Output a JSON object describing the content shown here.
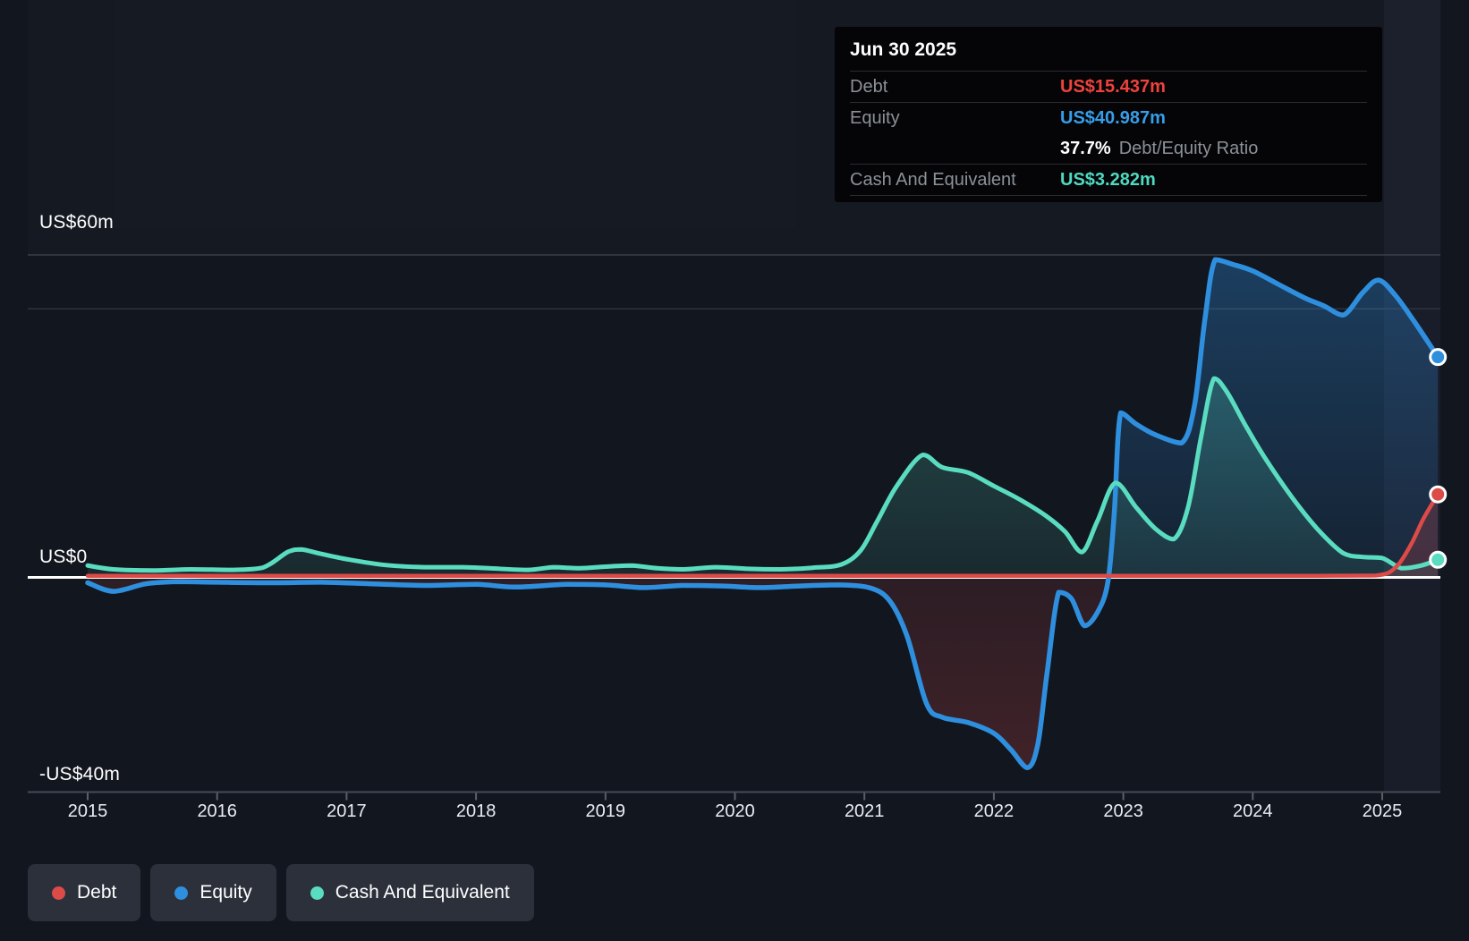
{
  "tooltip": {
    "date": "Jun 30 2025",
    "debt_label": "Debt",
    "debt_value": "US$15.437m",
    "equity_label": "Equity",
    "equity_value": "US$40.987m",
    "ratio_value": "37.7%",
    "ratio_label": "Debt/Equity Ratio",
    "cash_label": "Cash And Equivalent",
    "cash_value": "US$3.282m"
  },
  "y_axis": {
    "top_label": "US$60m",
    "zero_label": "US$0",
    "bottom_label": "-US$40m"
  },
  "x_axis": {
    "years": [
      "2015",
      "2016",
      "2017",
      "2018",
      "2019",
      "2020",
      "2021",
      "2022",
      "2023",
      "2024",
      "2025"
    ]
  },
  "legend": {
    "items": [
      {
        "label": "Debt",
        "color": "#dc4b48"
      },
      {
        "label": "Equity",
        "color": "#2f8fdf"
      },
      {
        "label": "Cash And Equivalent",
        "color": "#5adcc0"
      }
    ]
  },
  "colors": {
    "background": "#12161f",
    "debt_line": "#dc4b48",
    "equity_line": "#2f8fdf",
    "cash_line": "#5adcc0",
    "tooltip_debt_value": "#ee423d",
    "tooltip_equity_value": "#369ee8",
    "tooltip_cash_value": "#4fd9c0",
    "zero_line": "#ffffff",
    "gridline_major": "#3a3f4a",
    "gridline_minor": "#2e323c",
    "axis_line": "#454b57",
    "label_gray": "#8b9198"
  },
  "chart_data": {
    "type": "area",
    "x_unit": "year",
    "x_range": [
      2014.55,
      2025.45
    ],
    "ylim": [
      -40,
      62
    ],
    "ylabel_format": "US$ millions",
    "grid": "horizontal",
    "legend_position": "bottom",
    "y_ticks": [
      {
        "value": 60,
        "label": "US$60m"
      },
      {
        "value": 50,
        "label": ""
      },
      {
        "value": 0,
        "label": "US$0"
      },
      {
        "value": -40,
        "label": "-US$40m"
      }
    ],
    "x_ticks": [
      2015,
      2016,
      2017,
      2018,
      2019,
      2020,
      2021,
      2022,
      2023,
      2024,
      2025
    ],
    "hover_point": {
      "date": "Jun 30 2025",
      "x": 2025.5,
      "debt": 15.437,
      "equity": 40.987,
      "cash": 3.282,
      "debt_equity_ratio_pct": 37.7
    },
    "series": [
      {
        "name": "Debt",
        "color": "#dc4b48",
        "points": [
          [
            2015.0,
            0.3
          ],
          [
            2015.5,
            0.3
          ],
          [
            2016.0,
            0.3
          ],
          [
            2016.5,
            0.3
          ],
          [
            2017.0,
            0.3
          ],
          [
            2017.5,
            0.3
          ],
          [
            2018.0,
            0.3
          ],
          [
            2018.5,
            0.3
          ],
          [
            2019.0,
            0.3
          ],
          [
            2019.5,
            0.3
          ],
          [
            2020.0,
            0.3
          ],
          [
            2020.5,
            0.3
          ],
          [
            2021.0,
            0.3
          ],
          [
            2021.5,
            0.3
          ],
          [
            2022.0,
            0.3
          ],
          [
            2022.5,
            0.3
          ],
          [
            2023.0,
            0.3
          ],
          [
            2023.5,
            0.3
          ],
          [
            2024.0,
            0.3
          ],
          [
            2024.5,
            0.3
          ],
          [
            2024.95,
            0.35
          ],
          [
            2025.1,
            1.8
          ],
          [
            2025.22,
            6.0
          ],
          [
            2025.32,
            11.0
          ],
          [
            2025.43,
            15.437
          ]
        ]
      },
      {
        "name": "Equity",
        "color": "#2f8fdf",
        "points": [
          [
            2015.0,
            -1.0
          ],
          [
            2015.2,
            -2.6
          ],
          [
            2015.45,
            -1.2
          ],
          [
            2015.7,
            -0.8
          ],
          [
            2016.0,
            -0.9
          ],
          [
            2016.4,
            -1.0
          ],
          [
            2016.8,
            -0.9
          ],
          [
            2017.2,
            -1.2
          ],
          [
            2017.6,
            -1.5
          ],
          [
            2018.0,
            -1.3
          ],
          [
            2018.3,
            -1.8
          ],
          [
            2018.7,
            -1.3
          ],
          [
            2019.0,
            -1.4
          ],
          [
            2019.3,
            -1.9
          ],
          [
            2019.6,
            -1.5
          ],
          [
            2019.9,
            -1.6
          ],
          [
            2020.2,
            -1.9
          ],
          [
            2020.5,
            -1.6
          ],
          [
            2020.8,
            -1.4
          ],
          [
            2021.05,
            -2.0
          ],
          [
            2021.2,
            -4.5
          ],
          [
            2021.33,
            -11.0
          ],
          [
            2021.48,
            -23.5
          ],
          [
            2021.6,
            -26.0
          ],
          [
            2021.8,
            -27.0
          ],
          [
            2022.0,
            -29.0
          ],
          [
            2022.13,
            -32.0
          ],
          [
            2022.26,
            -35.4
          ],
          [
            2022.34,
            -31.0
          ],
          [
            2022.41,
            -18.0
          ],
          [
            2022.5,
            -2.8
          ],
          [
            2022.6,
            -4.0
          ],
          [
            2022.7,
            -9.0
          ],
          [
            2022.8,
            -6.5
          ],
          [
            2022.88,
            -1.0
          ],
          [
            2022.93,
            12.0
          ],
          [
            2022.98,
            30.6
          ],
          [
            2023.1,
            28.5
          ],
          [
            2023.25,
            26.5
          ],
          [
            2023.45,
            25.0
          ],
          [
            2023.55,
            32.0
          ],
          [
            2023.63,
            48.0
          ],
          [
            2023.71,
            59.1
          ],
          [
            2023.85,
            58.2
          ],
          [
            2024.0,
            57.0
          ],
          [
            2024.2,
            54.5
          ],
          [
            2024.4,
            52.0
          ],
          [
            2024.55,
            50.5
          ],
          [
            2024.7,
            48.8
          ],
          [
            2024.85,
            53.0
          ],
          [
            2024.97,
            55.3
          ],
          [
            2025.1,
            52.5
          ],
          [
            2025.25,
            47.5
          ],
          [
            2025.43,
            40.987
          ]
        ]
      },
      {
        "name": "Cash And Equivalent",
        "color": "#5adcc0",
        "points": [
          [
            2015.0,
            2.2
          ],
          [
            2015.2,
            1.5
          ],
          [
            2015.5,
            1.3
          ],
          [
            2015.8,
            1.5
          ],
          [
            2016.1,
            1.4
          ],
          [
            2016.35,
            1.8
          ],
          [
            2016.55,
            4.8
          ],
          [
            2016.65,
            5.2
          ],
          [
            2016.8,
            4.4
          ],
          [
            2017.0,
            3.4
          ],
          [
            2017.3,
            2.3
          ],
          [
            2017.6,
            1.9
          ],
          [
            2017.9,
            1.9
          ],
          [
            2018.1,
            1.7
          ],
          [
            2018.4,
            1.4
          ],
          [
            2018.6,
            1.9
          ],
          [
            2018.8,
            1.7
          ],
          [
            2019.0,
            2.0
          ],
          [
            2019.2,
            2.2
          ],
          [
            2019.4,
            1.7
          ],
          [
            2019.6,
            1.5
          ],
          [
            2019.85,
            1.9
          ],
          [
            2020.1,
            1.6
          ],
          [
            2020.35,
            1.5
          ],
          [
            2020.6,
            1.8
          ],
          [
            2020.82,
            2.4
          ],
          [
            2020.97,
            5.0
          ],
          [
            2021.1,
            10.5
          ],
          [
            2021.25,
            17.0
          ],
          [
            2021.45,
            22.8
          ],
          [
            2021.6,
            20.5
          ],
          [
            2021.8,
            19.5
          ],
          [
            2022.0,
            17.0
          ],
          [
            2022.2,
            14.5
          ],
          [
            2022.4,
            11.5
          ],
          [
            2022.55,
            8.5
          ],
          [
            2022.68,
            4.7
          ],
          [
            2022.8,
            10.5
          ],
          [
            2022.94,
            17.6
          ],
          [
            2023.1,
            13.0
          ],
          [
            2023.25,
            9.0
          ],
          [
            2023.39,
            7.1
          ],
          [
            2023.5,
            13.0
          ],
          [
            2023.6,
            26.0
          ],
          [
            2023.7,
            37.0
          ],
          [
            2023.8,
            34.5
          ],
          [
            2023.95,
            28.0
          ],
          [
            2024.1,
            22.0
          ],
          [
            2024.3,
            15.0
          ],
          [
            2024.5,
            9.0
          ],
          [
            2024.7,
            4.5
          ],
          [
            2024.85,
            3.8
          ],
          [
            2025.0,
            3.6
          ],
          [
            2025.15,
            1.7
          ],
          [
            2025.3,
            2.2
          ],
          [
            2025.43,
            3.282
          ]
        ]
      }
    ]
  }
}
